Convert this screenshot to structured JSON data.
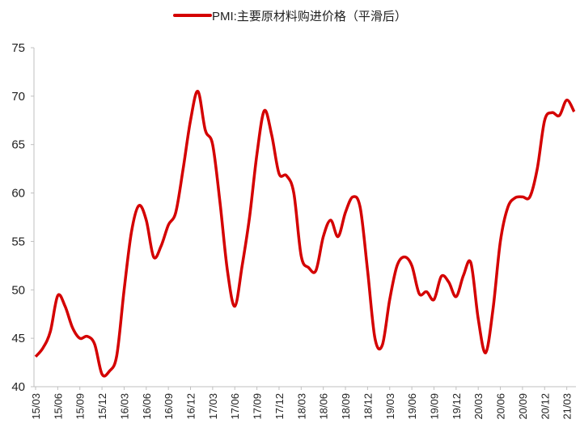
{
  "chart_data": {
    "type": "line",
    "title": "",
    "xlabel": "",
    "ylabel": "",
    "ylim": [
      40,
      75
    ],
    "yticks": [
      40,
      45,
      50,
      55,
      60,
      65,
      70,
      75
    ],
    "grid": false,
    "legend": "top-center",
    "x_tick_labels": [
      "15/03",
      "15/06",
      "15/09",
      "15/12",
      "16/03",
      "16/06",
      "16/09",
      "16/12",
      "17/03",
      "17/06",
      "17/09",
      "17/12",
      "18/03",
      "18/06",
      "18/09",
      "18/12",
      "19/03",
      "19/06",
      "19/09",
      "19/12",
      "20/03",
      "20/06",
      "20/09",
      "20/12",
      "21/03"
    ],
    "x_start": "2015-03",
    "x_frequency": "monthly",
    "series": [
      {
        "name": "PMI:主要原材料购进价格（平滑后）",
        "color": "#d40000",
        "values": [
          43.1,
          44.0,
          45.7,
          49.4,
          48.3,
          46.1,
          45.0,
          45.2,
          44.4,
          41.3,
          41.6,
          43.2,
          50.0,
          56.0,
          58.7,
          57.2,
          53.4,
          54.5,
          56.7,
          58.0,
          62.5,
          67.5,
          70.5,
          66.5,
          65.0,
          59.0,
          52.0,
          48.3,
          52.5,
          57.5,
          64.0,
          68.5,
          66.0,
          62.0,
          61.8,
          60.0,
          53.5,
          52.3,
          52.0,
          55.5,
          57.2,
          55.5,
          58.0,
          59.6,
          58.5,
          52.0,
          45.0,
          44.3,
          49.0,
          52.5,
          53.4,
          52.5,
          49.6,
          49.8,
          49.0,
          51.4,
          50.8,
          49.3,
          51.5,
          52.8,
          47.0,
          43.5,
          48.0,
          55.0,
          58.5,
          59.5,
          59.6,
          59.6,
          62.5,
          67.5,
          68.3,
          68.0,
          69.6,
          68.4
        ]
      }
    ]
  }
}
